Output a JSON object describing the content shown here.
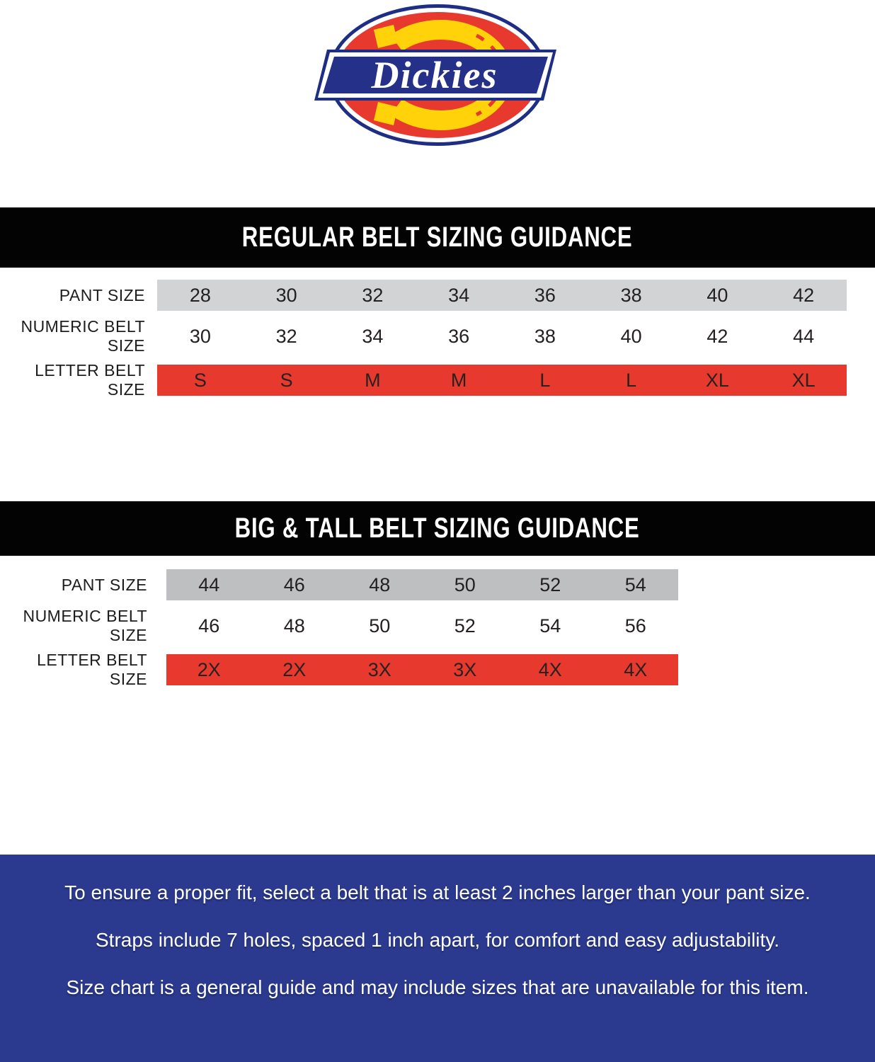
{
  "logo": {
    "brand": "Dickies"
  },
  "colors": {
    "brand_red": "#e8392f",
    "brand_navy": "#2b3a8e",
    "brand_yellow": "#ffd20a",
    "banner_black": "#030303",
    "gray_regular": "#d2d3d5",
    "gray_bigtall": "#bdbfc1"
  },
  "regular": {
    "title": "REGULAR BELT SIZING GUIDANCE",
    "rows": [
      {
        "label": "PANT SIZE",
        "style": "gray",
        "values": [
          "28",
          "30",
          "32",
          "34",
          "36",
          "38",
          "40",
          "42"
        ]
      },
      {
        "label": "NUMERIC BELT SIZE",
        "style": "plain",
        "values": [
          "30",
          "32",
          "34",
          "36",
          "38",
          "40",
          "42",
          "44"
        ]
      },
      {
        "label": "LETTER BELT SIZE",
        "style": "red",
        "values": [
          "S",
          "S",
          "M",
          "M",
          "L",
          "L",
          "XL",
          "XL"
        ]
      }
    ]
  },
  "bigtall": {
    "title": "BIG & TALL BELT SIZING GUIDANCE",
    "rows": [
      {
        "label": "PANT SIZE",
        "style": "gray",
        "values": [
          "44",
          "46",
          "48",
          "50",
          "52",
          "54"
        ]
      },
      {
        "label": "NUMERIC BELT SIZE",
        "style": "plain",
        "values": [
          "46",
          "48",
          "50",
          "52",
          "54",
          "56"
        ]
      },
      {
        "label": "LETTER BELT SIZE",
        "style": "red",
        "values": [
          "2X",
          "2X",
          "3X",
          "3X",
          "4X",
          "4X"
        ]
      }
    ]
  },
  "footer": {
    "lines": [
      "To ensure a proper fit, select a belt that is at least 2 inches larger than your pant size.",
      "Straps include 7 holes, spaced 1 inch apart, for comfort and easy adjustability.",
      "Size chart is a general guide and may include sizes that are unavailable for this item."
    ]
  }
}
